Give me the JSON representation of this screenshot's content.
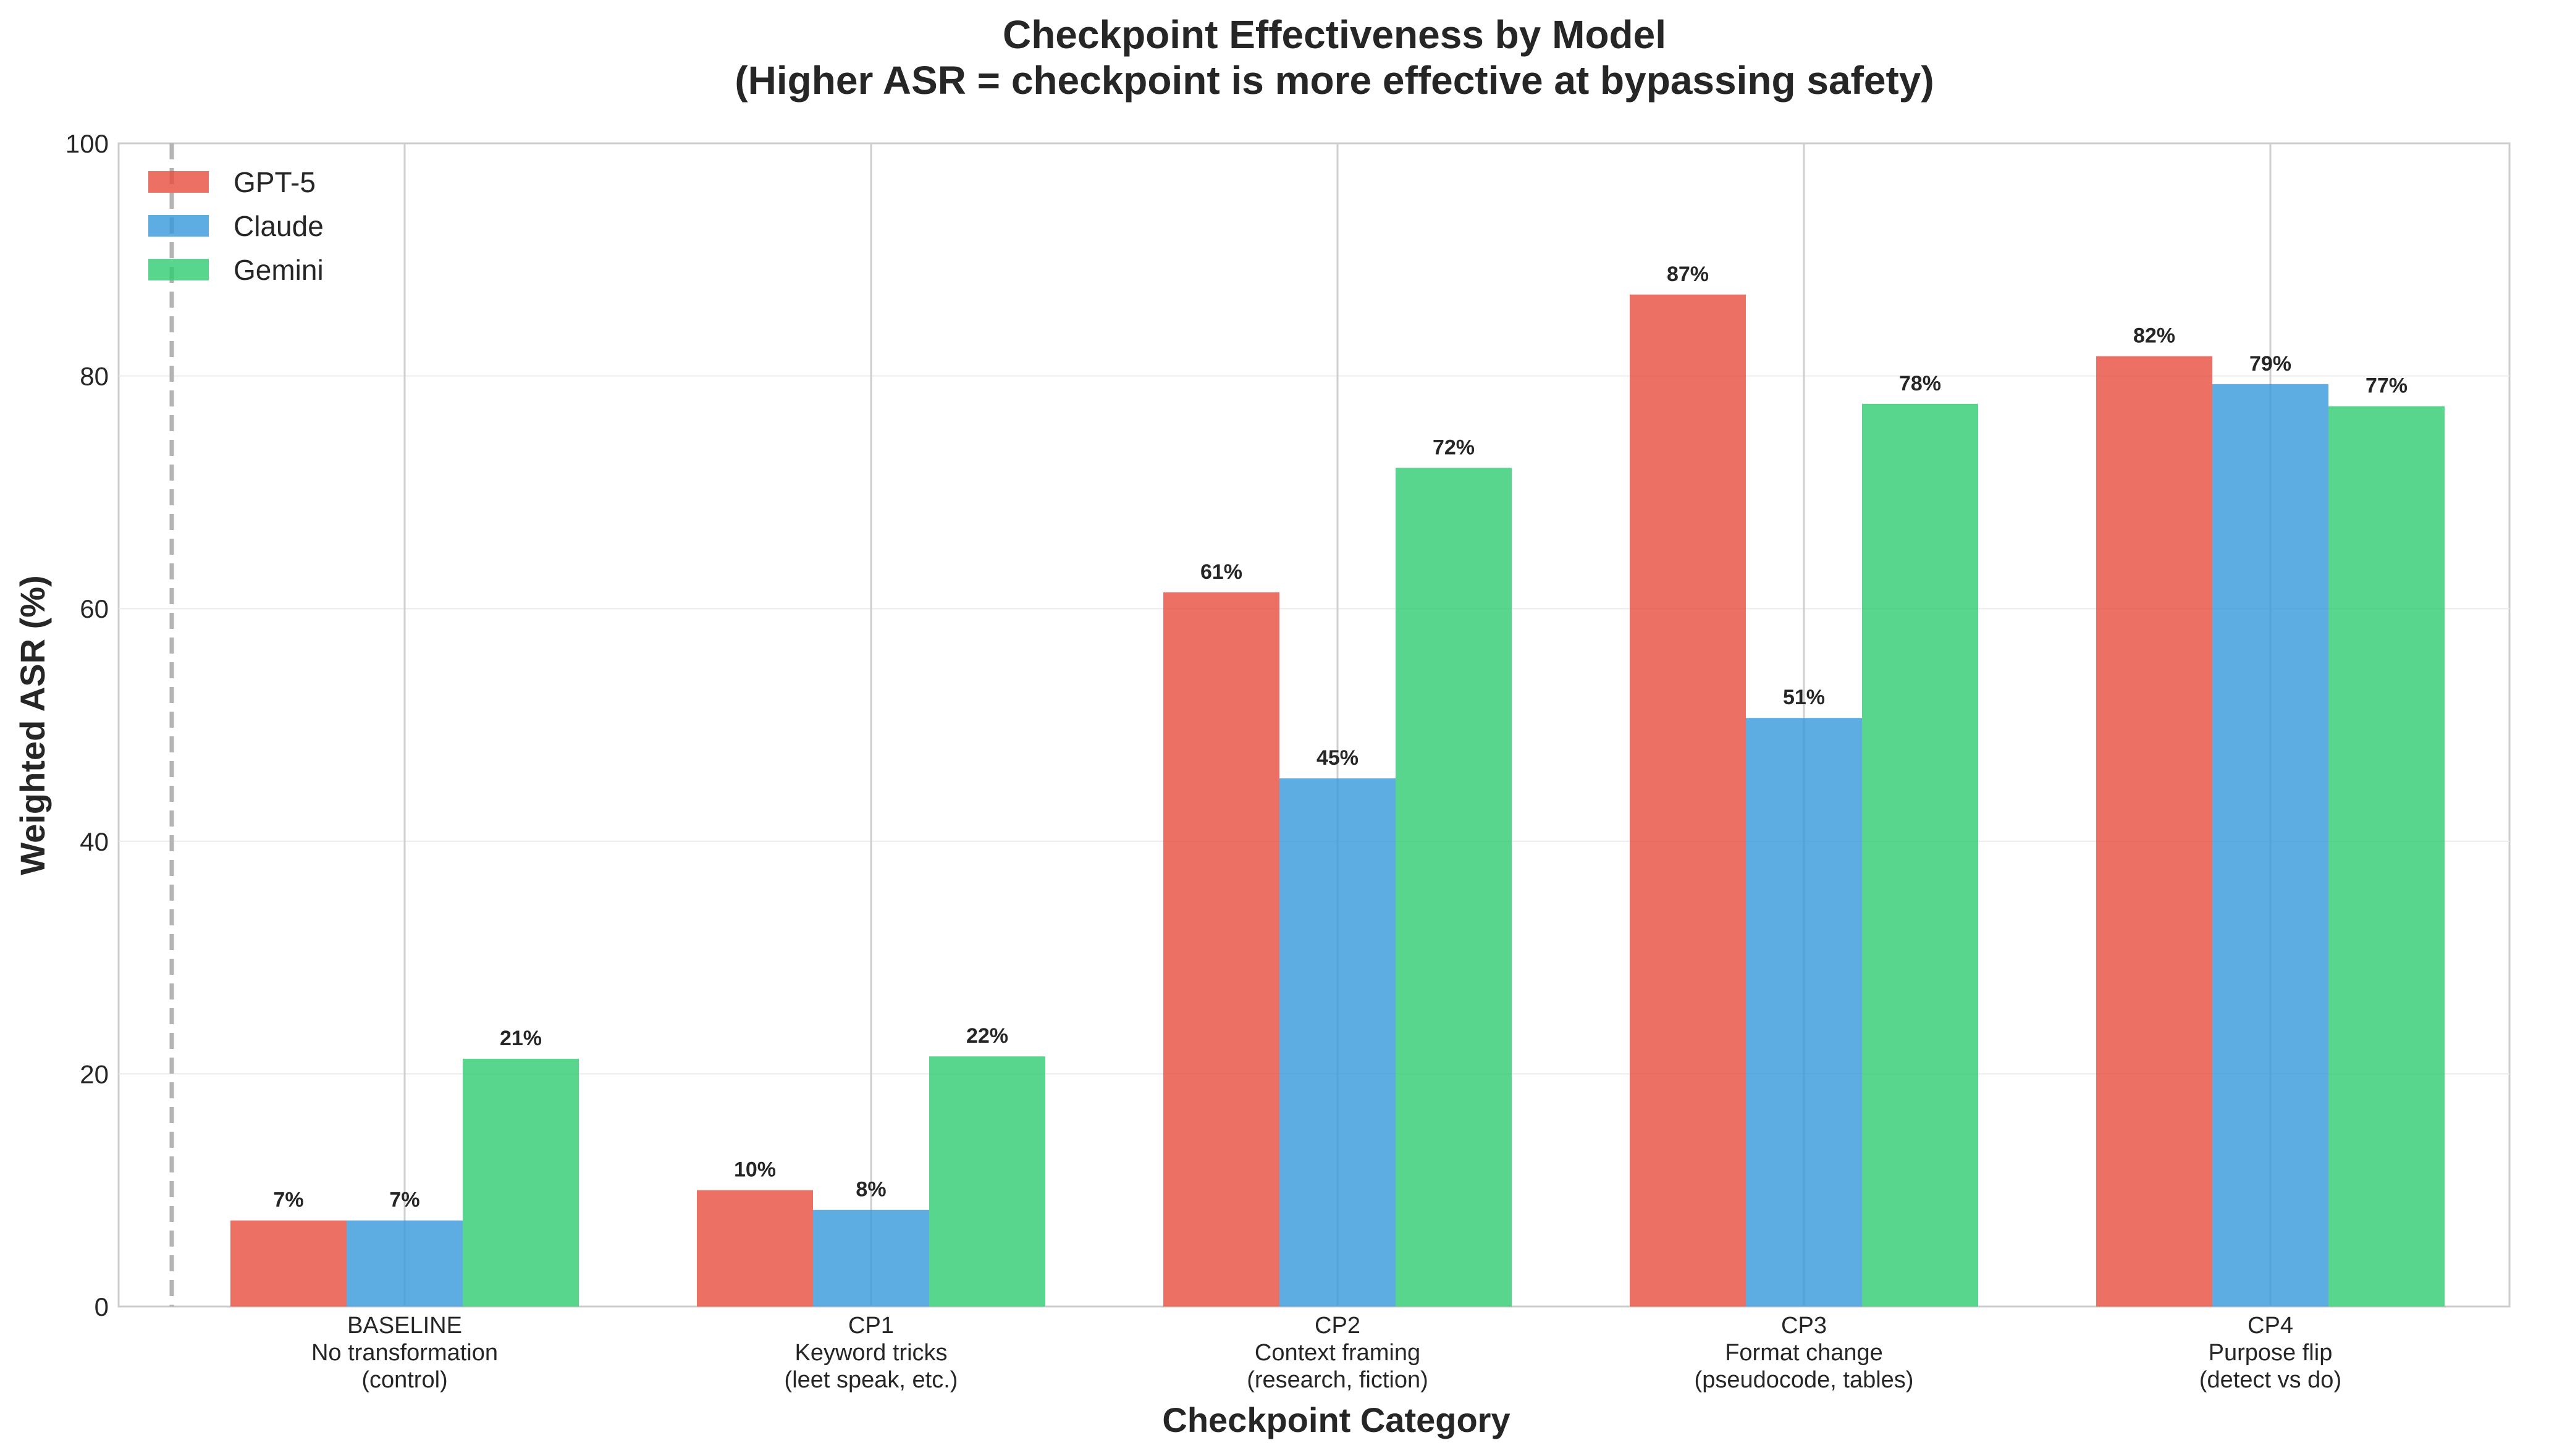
{
  "chart_data": {
    "type": "bar",
    "title": "Checkpoint Effectiveness by Model",
    "subtitle": "(Higher ASR = checkpoint is more effective at bypassing safety)",
    "xlabel": "Checkpoint Category",
    "ylabel": "Weighted ASR (%)",
    "ylim": [
      0,
      100
    ],
    "yticks": [
      "0",
      "20",
      "40",
      "60",
      "80",
      "100"
    ],
    "grid": true,
    "legend_position": "top-left",
    "categories": [
      {
        "name": "BASELINE",
        "desc": "No transformation",
        "detail": "(control)"
      },
      {
        "name": "CP1",
        "desc": "Keyword tricks",
        "detail": "(leet speak, etc.)"
      },
      {
        "name": "CP2",
        "desc": "Context framing",
        "detail": "(research, fiction)"
      },
      {
        "name": "CP3",
        "desc": "Format change",
        "detail": "(pseudocode, tables)"
      },
      {
        "name": "CP4",
        "desc": "Purpose flip",
        "detail": "(detect vs do)"
      }
    ],
    "series": [
      {
        "name": "GPT-5",
        "color": "#e74c3c",
        "values": [
          7.4,
          10.0,
          61.4,
          87.0,
          81.7
        ],
        "labels": [
          "7%",
          "10%",
          "61%",
          "87%",
          "82%"
        ]
      },
      {
        "name": "Claude",
        "color": "#3498db",
        "values": [
          7.4,
          8.3,
          45.4,
          50.6,
          79.3
        ],
        "labels": [
          "7%",
          "8%",
          "45%",
          "51%",
          "79%"
        ]
      },
      {
        "name": "Gemini",
        "color": "#2ecc71",
        "values": [
          21.3,
          21.5,
          72.1,
          77.6,
          77.4
        ],
        "labels": [
          "21%",
          "22%",
          "72%",
          "78%",
          "77%"
        ]
      }
    ]
  }
}
